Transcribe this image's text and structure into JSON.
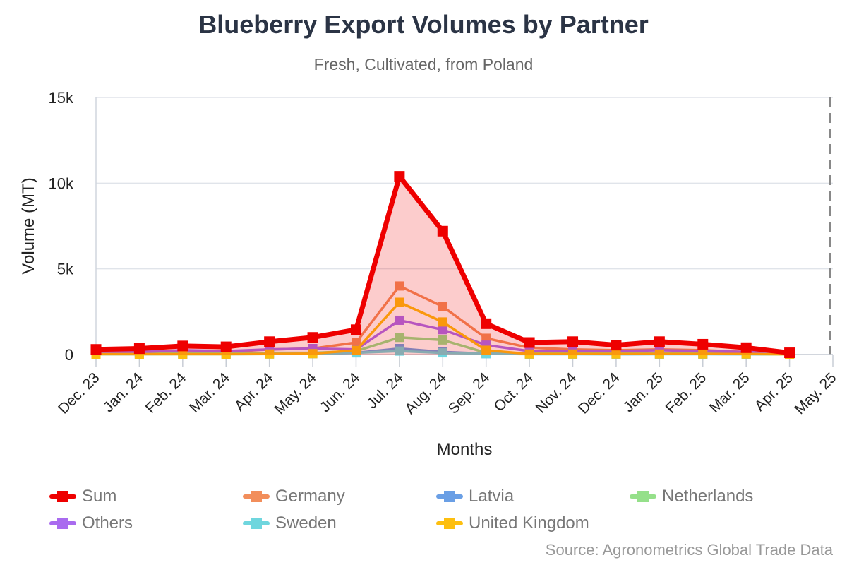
{
  "title": "Blueberry Export Volumes by Partner",
  "subtitle": "Fresh, Cultivated, from Poland",
  "source": "Source: Agronometrics Global Trade Data",
  "chart_data": {
    "type": "line",
    "title": "Blueberry Export Volumes by Partner",
    "subtitle": "Fresh, Cultivated, from Poland",
    "xlabel": "Months",
    "ylabel": "Volume (MT)",
    "ylim": [
      0,
      15000
    ],
    "yticks": [
      0,
      5000,
      10000,
      15000
    ],
    "ytick_labels": [
      "0",
      "5k",
      "10k",
      "15k"
    ],
    "categories": [
      "Dec. 23",
      "Jan. 24",
      "Feb. 24",
      "Mar. 24",
      "Apr. 24",
      "May. 24",
      "Jun. 24",
      "Jul. 24",
      "Aug. 24",
      "Sep. 24",
      "Oct. 24",
      "Nov. 24",
      "Dec. 24",
      "Jan. 25",
      "Feb. 25",
      "Mar. 25",
      "Apr. 25",
      "May. 25"
    ],
    "grid": true,
    "legend_position": "bottom",
    "series": [
      {
        "name": "Sum",
        "color": "#ee0000",
        "area": true,
        "values": [
          300,
          350,
          500,
          450,
          750,
          1000,
          1450,
          10400,
          7200,
          1800,
          700,
          750,
          550,
          750,
          600,
          400,
          100,
          null
        ]
      },
      {
        "name": "Germany",
        "color": "#f28e5b",
        "values": [
          100,
          100,
          150,
          150,
          300,
          350,
          700,
          4000,
          2800,
          950,
          400,
          300,
          250,
          300,
          250,
          150,
          50,
          null
        ]
      },
      {
        "name": "Latvia",
        "color": "#6a9fe5",
        "values": [
          20,
          20,
          30,
          30,
          40,
          50,
          100,
          350,
          150,
          50,
          30,
          30,
          20,
          30,
          30,
          20,
          10,
          null
        ]
      },
      {
        "name": "Netherlands",
        "color": "#95e08a",
        "values": [
          50,
          50,
          50,
          50,
          100,
          100,
          200,
          1000,
          850,
          100,
          50,
          50,
          50,
          50,
          50,
          50,
          20,
          null
        ]
      },
      {
        "name": "Others",
        "color": "#a96bef",
        "values": [
          150,
          150,
          250,
          200,
          300,
          350,
          300,
          2000,
          1450,
          550,
          200,
          200,
          200,
          250,
          200,
          150,
          100,
          null
        ]
      },
      {
        "name": "Sweden",
        "color": "#6fd6de",
        "values": [
          20,
          20,
          20,
          20,
          30,
          50,
          100,
          200,
          100,
          50,
          20,
          20,
          20,
          20,
          20,
          20,
          10,
          null
        ]
      },
      {
        "name": "United Kingdom",
        "color": "#fdbf10",
        "values": [
          20,
          20,
          20,
          20,
          30,
          50,
          250,
          3050,
          1900,
          250,
          30,
          30,
          30,
          30,
          30,
          30,
          10,
          null
        ]
      }
    ]
  },
  "colors": {
    "title": "#2b3445",
    "axis_text": "#222222",
    "grid": "#e0e4ea",
    "future_marker": "#888888"
  }
}
